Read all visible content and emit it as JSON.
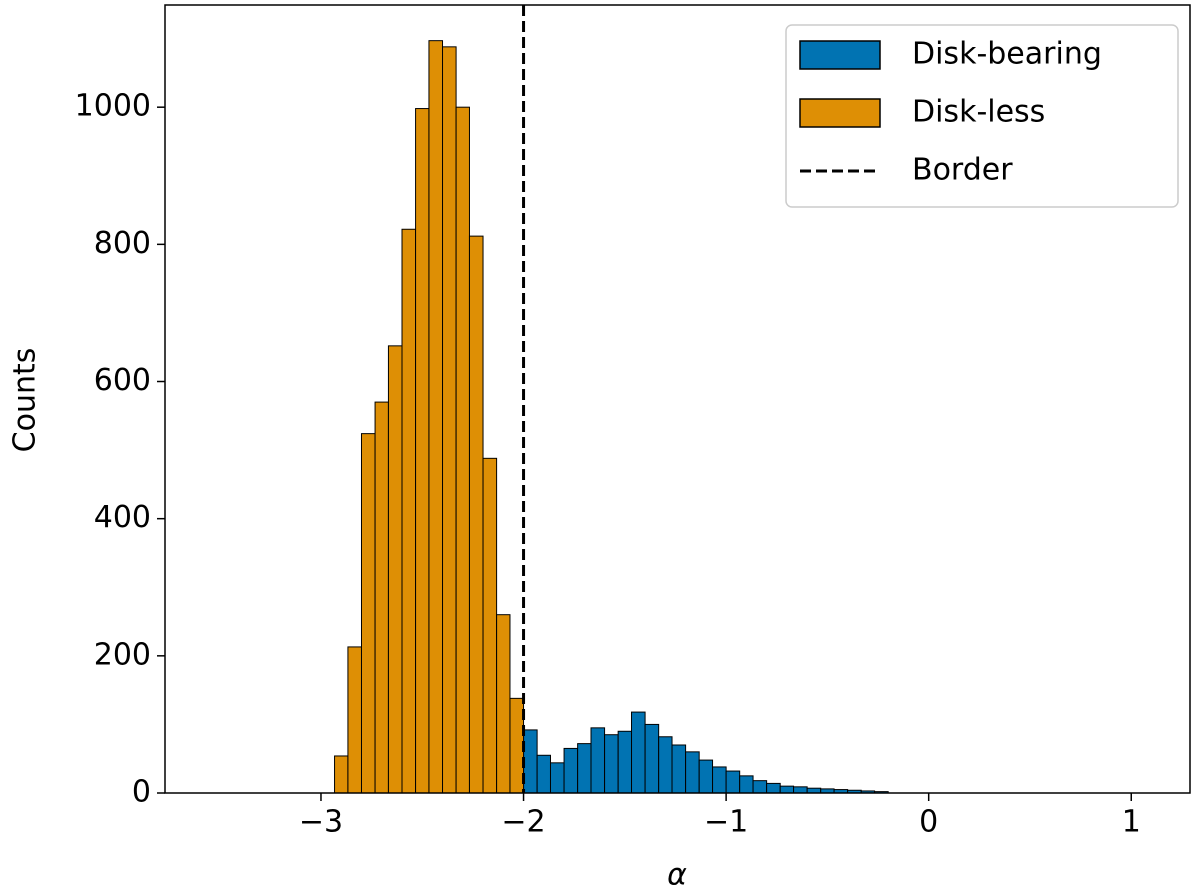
{
  "chart_data": {
    "type": "histogram",
    "xlabel": "α",
    "ylabel": "Counts",
    "xlim": [
      -3.77,
      1.29
    ],
    "ylim": [
      0,
      1149
    ],
    "xticks": [
      {
        "value": -3,
        "label": "−3"
      },
      {
        "value": -2,
        "label": "−2"
      },
      {
        "value": -1,
        "label": "−1"
      },
      0,
      1
    ],
    "yticks": [
      0,
      200,
      400,
      600,
      800,
      1000
    ],
    "legend": "upper right",
    "edgecolor": "#000000",
    "series": [
      {
        "name": "Disk-bearing",
        "color": "#0173b2",
        "bins": [
          -2.0,
          -1.933,
          -1.867,
          -1.8,
          -1.733,
          -1.667,
          -1.6,
          -1.533,
          -1.467,
          -1.4,
          -1.333,
          -1.267,
          -1.2,
          -1.133,
          -1.067,
          -1.0,
          -0.933,
          -0.867,
          -0.8,
          -0.733,
          -0.667,
          -0.6,
          -0.533,
          -0.467,
          -0.4,
          -0.333,
          -0.267,
          -0.2
        ],
        "values": [
          92,
          55,
          44,
          65,
          72,
          95,
          85,
          90,
          118,
          100,
          82,
          70,
          60,
          48,
          38,
          32,
          25,
          18,
          14,
          10,
          9,
          7,
          6,
          5,
          4,
          3,
          2
        ]
      },
      {
        "name": "Disk-less",
        "color": "#de8f05",
        "bins": [
          -2.933,
          -2.867,
          -2.8,
          -2.733,
          -2.667,
          -2.6,
          -2.533,
          -2.467,
          -2.4,
          -2.333,
          -2.267,
          -2.2,
          -2.133,
          -2.067,
          -2.0
        ],
        "values": [
          54,
          213,
          524,
          570,
          652,
          822,
          998,
          1097,
          1088,
          1000,
          812,
          488,
          260,
          138
        ]
      }
    ],
    "reference_line": {
      "name": "Border",
      "x": -2,
      "color": "#000000",
      "style": "dashed"
    }
  }
}
